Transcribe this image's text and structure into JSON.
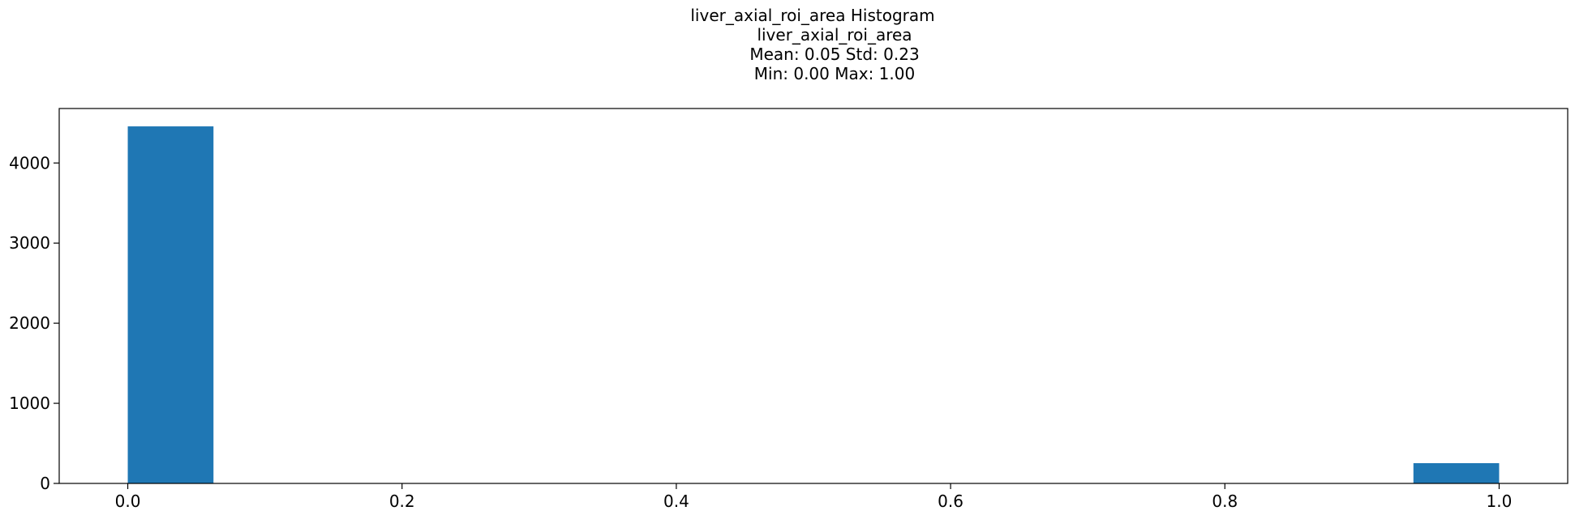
{
  "chart_data": {
    "type": "bar",
    "title_lines": [
      "liver_axial_roi_area Histogram",
      "liver_axial_roi_area",
      "Mean: 0.05 Std: 0.23",
      "Min: 0.00 Max: 1.00"
    ],
    "xlabel": "",
    "ylabel": "",
    "xlim": [
      -0.05,
      1.05
    ],
    "ylim": [
      0,
      4680
    ],
    "xticks": [
      0.0,
      0.2,
      0.4,
      0.6,
      0.8,
      1.0
    ],
    "xtick_labels": [
      "0.0",
      "0.2",
      "0.4",
      "0.6",
      "0.8",
      "1.0"
    ],
    "yticks": [
      0,
      1000,
      2000,
      3000,
      4000
    ],
    "ytick_labels": [
      "0",
      "1000",
      "2000",
      "3000",
      "4000"
    ],
    "bins": [
      {
        "x0": 0.0,
        "x1": 0.0625,
        "count": 4457
      },
      {
        "x0": 0.9375,
        "x1": 1.0,
        "count": 253
      }
    ],
    "bar_color": "#1f77b4",
    "grid": false
  }
}
